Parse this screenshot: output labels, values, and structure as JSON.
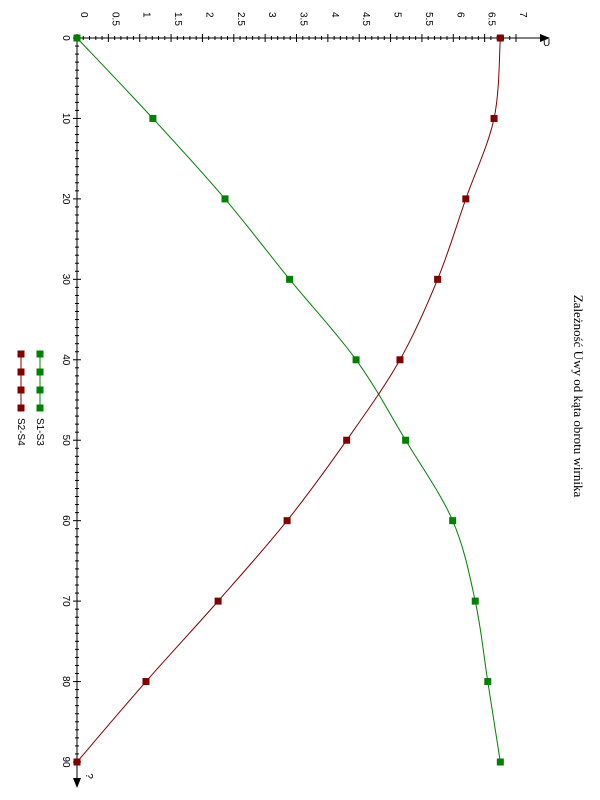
{
  "chart_data": {
    "type": "line",
    "title": "Zależność Uwy od kąta obrotu wirnika",
    "xlabel": "?",
    "ylabel": "U",
    "x": [
      0,
      10,
      20,
      30,
      40,
      50,
      60,
      70,
      80,
      90
    ],
    "xlim": [
      0,
      90
    ],
    "ylim": [
      0,
      7
    ],
    "x_ticks": [
      0,
      10,
      20,
      30,
      40,
      50,
      60,
      70,
      80,
      90
    ],
    "y_ticks": [
      0,
      0.5,
      1,
      1.5,
      2,
      2.5,
      3,
      3.5,
      4,
      4.5,
      5,
      5.5,
      6,
      6.5,
      7
    ],
    "y_tick_labels": [
      "0",
      "0.5",
      "1",
      "1.5",
      "2",
      "2.5",
      "3",
      "3.5",
      "4",
      "4.5",
      "5",
      "5.5",
      "6",
      "6.5",
      "7"
    ],
    "x_tick_labels": [
      "0",
      "10",
      "20",
      "30",
      "40",
      "50",
      "60",
      "70",
      "80",
      "90"
    ],
    "grid": false,
    "rotated": "90° clockwise",
    "legend_placement": "bottom-center",
    "series": [
      {
        "name": "S1-S3",
        "color": "#008000",
        "values": [
          0,
          1.21,
          2.36,
          3.39,
          4.45,
          5.24,
          5.99,
          6.35,
          6.55,
          6.75
        ]
      },
      {
        "name": "S2-S4",
        "color": "#800000",
        "values": [
          6.75,
          6.65,
          6.2,
          5.75,
          5.15,
          4.3,
          3.35,
          2.25,
          1.1,
          0
        ]
      }
    ]
  }
}
